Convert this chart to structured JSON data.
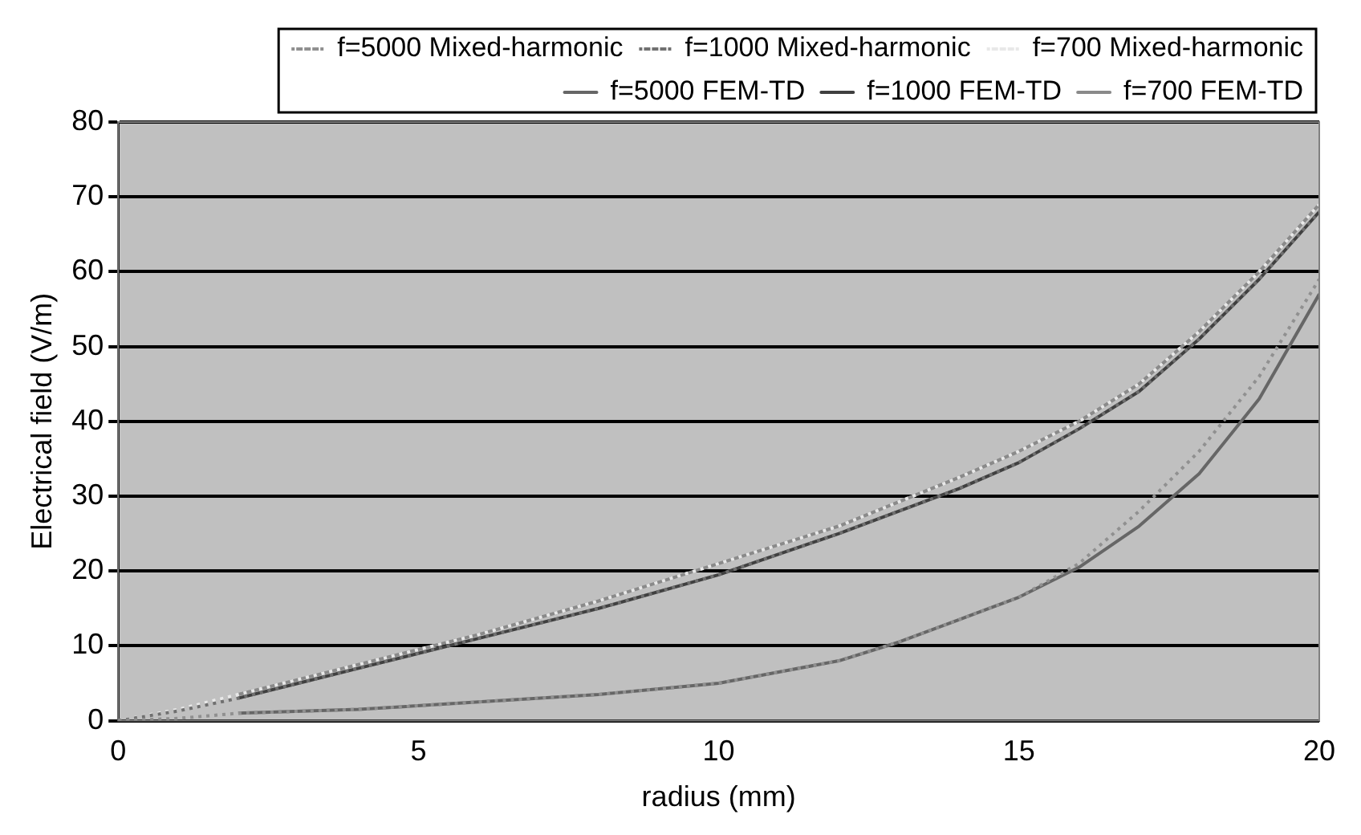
{
  "chart_data": {
    "type": "line",
    "xlabel": "radius (mm)",
    "ylabel": "Electrical field (V/m)",
    "xlim": [
      0,
      20
    ],
    "xticks": [
      0,
      5,
      10,
      15,
      20
    ],
    "ylim": [
      0,
      80
    ],
    "yticks": [
      0,
      10,
      20,
      30,
      40,
      50,
      60,
      70,
      80
    ],
    "grid": "y",
    "legend": "top",
    "marker": "none",
    "series": [
      {
        "name": "f=700 FEM-TD",
        "color": "#8a8a8a",
        "line_style": "solid",
        "x": [
          2,
          3,
          4,
          5,
          6,
          8,
          10,
          12,
          14,
          15,
          16,
          17,
          18,
          19,
          20
        ],
        "values": [
          3.5,
          5.5,
          7.5,
          9.5,
          11.5,
          16,
          21,
          26,
          32.5,
          36,
          40,
          45,
          52,
          60,
          69
        ]
      },
      {
        "name": "f=1000 FEM-TD",
        "color": "#404040",
        "line_style": "solid",
        "x": [
          2,
          3,
          4,
          5,
          6,
          8,
          10,
          12,
          14,
          15,
          16,
          17,
          18,
          19,
          20
        ],
        "values": [
          3,
          5,
          7,
          9,
          11,
          15,
          19.5,
          25,
          31,
          34.5,
          39,
          44,
          51,
          59,
          68
        ]
      },
      {
        "name": "f=5000 FEM-TD",
        "color": "#666666",
        "line_style": "solid",
        "x": [
          2,
          4,
          6,
          8,
          10,
          11,
          12,
          13,
          14,
          15,
          16,
          17,
          18,
          19,
          20
        ],
        "values": [
          1,
          1.5,
          2.5,
          3.5,
          5,
          6.5,
          8,
          10.5,
          13.5,
          16.5,
          20.5,
          26,
          33,
          43,
          57
        ]
      },
      {
        "name": "f=700 Mixed-harmonic",
        "color": "#e8e8e8",
        "line_style": "dotted",
        "x": [
          0,
          1,
          2,
          4,
          5,
          6,
          8,
          10,
          12,
          14,
          15,
          16,
          17,
          18,
          19,
          20
        ],
        "values": [
          0,
          1.5,
          3.5,
          7.5,
          9.5,
          11.5,
          16,
          21,
          26,
          32.5,
          36,
          40,
          45,
          52,
          60,
          69
        ]
      },
      {
        "name": "f=1000 Mixed-harmonic",
        "color": "#707070",
        "line_style": "dotted",
        "x": [
          0,
          1,
          2,
          4,
          5,
          6,
          8,
          10,
          12,
          14,
          15,
          16,
          17,
          18,
          19,
          20
        ],
        "values": [
          0,
          1.3,
          3,
          7,
          9,
          11,
          15,
          19.5,
          25,
          31,
          34.5,
          39,
          44,
          51,
          59,
          68
        ]
      },
      {
        "name": "f=5000 Mixed-harmonic",
        "color": "#909090",
        "line_style": "dotted",
        "x": [
          0,
          1,
          2,
          4,
          6,
          8,
          10,
          12,
          13,
          14,
          15,
          16,
          17,
          18,
          19,
          20
        ],
        "values": [
          0,
          0.3,
          1,
          1.5,
          2.5,
          3.5,
          5,
          8,
          10.5,
          13.5,
          16.5,
          21,
          28,
          36,
          46,
          59
        ]
      }
    ]
  }
}
